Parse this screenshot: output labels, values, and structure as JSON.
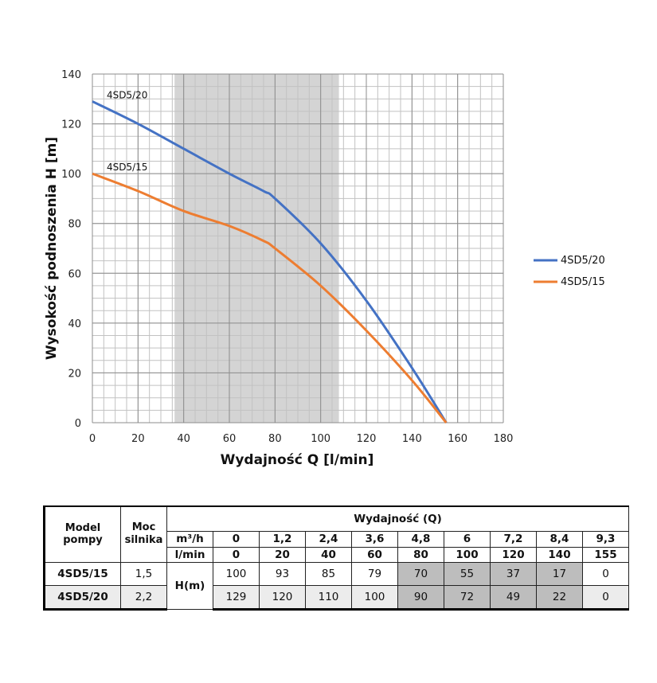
{
  "chart_data": {
    "type": "line",
    "xlabel": "Wydajność Q [l/min]",
    "ylabel": "Wysokość podnoszenia H [m]",
    "xlim": [
      0,
      180
    ],
    "ylim": [
      0,
      140
    ],
    "x_ticks": [
      0,
      20,
      40,
      60,
      80,
      100,
      120,
      140,
      160,
      180
    ],
    "y_ticks": [
      0,
      20,
      40,
      60,
      80,
      100,
      120,
      140
    ],
    "grid": true,
    "minor_grid_step_x": 5,
    "minor_grid_step_y": 5,
    "shaded_region_x": [
      36,
      108
    ],
    "legend_position": "right",
    "series": [
      {
        "name": "4SD5/20",
        "label": "4SD5/20",
        "color": "#4472c4",
        "x": [
          0,
          20,
          40,
          60,
          75,
          80,
          100,
          120,
          140,
          155
        ],
        "values": [
          129,
          120,
          110,
          100,
          93,
          90,
          72,
          49,
          22,
          0
        ]
      },
      {
        "name": "4SD5/15",
        "label": "4SD5/15",
        "color": "#ed7d31",
        "x": [
          0,
          20,
          40,
          60,
          75,
          80,
          100,
          120,
          140,
          155
        ],
        "values": [
          100,
          93,
          85,
          79,
          73,
          70,
          55,
          37,
          17,
          0
        ]
      }
    ]
  },
  "table": {
    "model_header": "Model pompy",
    "power_header": "Moc silnika",
    "flow_header": "Wydajność (Q)",
    "unit_m3h": "m³/h",
    "unit_lmin": "l/min",
    "m3h_values": [
      "0",
      "1,2",
      "2,4",
      "3,6",
      "4,8",
      "6",
      "7,2",
      "8,4",
      "9,3"
    ],
    "lmin_values": [
      "0",
      "20",
      "40",
      "60",
      "80",
      "100",
      "120",
      "140",
      "155"
    ],
    "head_label": "H(m)",
    "rows": [
      {
        "model": "4SD5/15",
        "power": "1,5",
        "values": [
          "100",
          "93",
          "85",
          "79",
          "70",
          "55",
          "37",
          "17",
          "0"
        ]
      },
      {
        "model": "4SD5/20",
        "power": "2,2",
        "values": [
          "129",
          "120",
          "110",
          "100",
          "90",
          "72",
          "49",
          "22",
          "0"
        ]
      }
    ]
  }
}
